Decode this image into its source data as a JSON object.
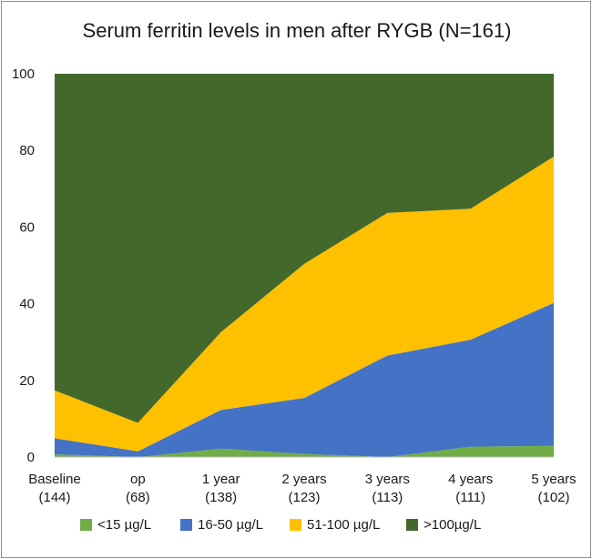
{
  "chart_data": {
    "type": "area",
    "stacked": true,
    "title": "Serum ferritin levels in men after RYGB (N=161)",
    "xlabel": "",
    "ylabel": "",
    "ylim": [
      0,
      100
    ],
    "yticks": [
      0,
      20,
      40,
      60,
      80,
      100
    ],
    "categories": [
      [
        "Baseline",
        "(144)"
      ],
      [
        "op",
        "(68)"
      ],
      [
        "1 year",
        "(138)"
      ],
      [
        "2 years",
        "(123)"
      ],
      [
        "3 years",
        "(113)"
      ],
      [
        "4 years",
        "(111)"
      ],
      [
        "5 years",
        "(102)"
      ]
    ],
    "series": [
      {
        "name": "<15 µg/L",
        "color": "#70ad47",
        "values": [
          0.7,
          0,
          2.2,
          0.8,
          0,
          2.7,
          2.9
        ]
      },
      {
        "name": "16-50 µg/L",
        "color": "#4472c4",
        "values": [
          4.2,
          1.5,
          10.1,
          14.6,
          26.5,
          27.9,
          37.3
        ]
      },
      {
        "name": "51-100 µg/L",
        "color": "#ffc000",
        "values": [
          12.5,
          7.4,
          20.3,
          35.0,
          37.2,
          34.2,
          38.2
        ]
      },
      {
        "name": ">100µg/L",
        "color": "#43682b",
        "values": [
          82.6,
          91.1,
          67.4,
          49.6,
          36.3,
          35.2,
          21.6
        ]
      }
    ],
    "legend_position": "bottom",
    "grid": false
  }
}
